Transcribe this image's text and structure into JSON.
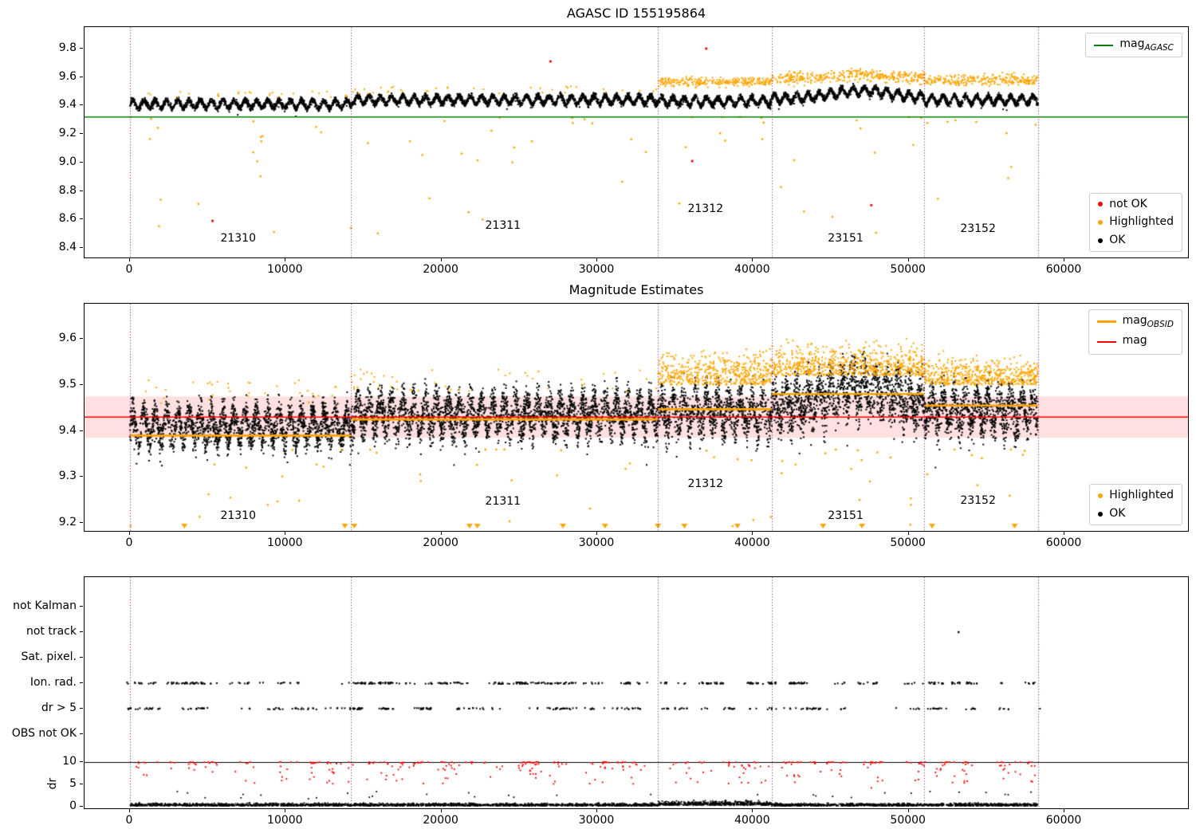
{
  "colors": {
    "ok": "#000000",
    "highlighted": "#FFA500",
    "not_ok": "#FF0000",
    "agasc": "#008000",
    "mag": "#FF0000",
    "mag_band": "rgba(255,0,0,0.12)",
    "vline": "#800080",
    "spine": "#000000"
  },
  "chart_data": [
    {
      "type": "scatter",
      "title": "AGASC ID 155195864",
      "xlim": [
        -2918,
        67932
      ],
      "ylim": [
        8.333,
        9.951
      ],
      "xticks": [
        0,
        10000,
        20000,
        30000,
        40000,
        50000,
        60000
      ],
      "yticks": [
        8.4,
        8.6,
        8.8,
        9.0,
        9.2,
        9.4,
        9.6,
        9.8
      ],
      "vlines": [
        0,
        14200,
        33900,
        41200,
        51000,
        58300
      ],
      "agasc_mag": 9.32,
      "x_range": [
        0,
        58300
      ],
      "legend_line": {
        "label_main": "mag",
        "label_sub": "AGASC"
      },
      "legend_points": [
        {
          "label": "not OK",
          "color_key": "not_ok"
        },
        {
          "label": "Highlighted",
          "color_key": "highlighted"
        },
        {
          "label": "OK",
          "color_key": "ok"
        }
      ],
      "obsid_labels": [
        {
          "id": "21310",
          "x": 7000,
          "y": 8.46
        },
        {
          "id": "21311",
          "x": 24000,
          "y": 8.55
        },
        {
          "id": "21312",
          "x": 37000,
          "y": 8.67
        },
        {
          "id": "23151",
          "x": 46000,
          "y": 8.46
        },
        {
          "id": "23152",
          "x": 54500,
          "y": 8.53
        }
      ],
      "segments": [
        {
          "x0": 0,
          "x1": 14200,
          "base": 9.41
        },
        {
          "x0": 14200,
          "x1": 33900,
          "base": 9.44
        },
        {
          "x0": 33900,
          "x1": 41200,
          "base": 9.43,
          "highlight_band": [
            9.5,
            9.63
          ]
        },
        {
          "x0": 41200,
          "x1": 51000,
          "base": 9.45,
          "highlight_band": [
            9.5,
            9.68
          ],
          "bump_x": 47000,
          "bump_w": 2600,
          "bump_h": 0.055
        },
        {
          "x0": 51000,
          "x1": 58300,
          "base": 9.44,
          "highlight_band": [
            9.5,
            9.66
          ]
        }
      ],
      "black_points": 7000,
      "outliers_orange": {
        "count": 70,
        "y_top": 9.32,
        "y_bottom": 8.45
      },
      "not_ok_points": [
        [
          5300,
          8.59
        ],
        [
          27000,
          9.71
        ],
        [
          36100,
          9.01
        ],
        [
          37000,
          9.8
        ],
        [
          47600,
          8.7
        ]
      ]
    },
    {
      "type": "scatter",
      "title": "Magnitude Estimates",
      "xlim": [
        -2918,
        67932
      ],
      "ylim": [
        9.183,
        9.676
      ],
      "xticks": [
        0,
        10000,
        20000,
        30000,
        40000,
        50000,
        60000
      ],
      "yticks": [
        9.2,
        9.3,
        9.4,
        9.5,
        9.6
      ],
      "vlines": [
        0,
        14200,
        33900,
        41200,
        51000,
        58300
      ],
      "mag": 9.43,
      "mag_band": [
        9.385,
        9.475
      ],
      "x_range": [
        0,
        58300
      ],
      "obsid_mags": [
        {
          "id": "21310",
          "x0": 0,
          "x1": 14200,
          "mag": 9.39
        },
        {
          "id": "21311",
          "x0": 14200,
          "x1": 33900,
          "mag": 9.425
        },
        {
          "id": "21312",
          "x0": 33900,
          "x1": 41200,
          "mag": 9.447
        },
        {
          "id": "23151",
          "x0": 41200,
          "x1": 51000,
          "mag": 9.48
        },
        {
          "id": "23152",
          "x0": 51000,
          "x1": 58300,
          "mag": 9.455
        }
      ],
      "legend_lines": [
        {
          "label_main": "mag",
          "label_sub": "OBSID",
          "color_key": "highlighted"
        },
        {
          "label_main": "mag",
          "label_sub": "",
          "color_key": "mag"
        }
      ],
      "legend_points": [
        {
          "label": "Highlighted",
          "color_key": "highlighted"
        },
        {
          "label": "OK",
          "color_key": "ok"
        }
      ],
      "obsid_labels": [
        {
          "id": "21310",
          "x": 7000,
          "y": 9.215
        },
        {
          "id": "21311",
          "x": 24000,
          "y": 9.245
        },
        {
          "id": "21312",
          "x": 37000,
          "y": 9.283
        },
        {
          "id": "23151",
          "x": 46000,
          "y": 9.215
        },
        {
          "id": "23152",
          "x": 54500,
          "y": 9.247
        }
      ],
      "segments": [
        {
          "x0": 0,
          "x1": 14200,
          "base": 9.41,
          "spread": 0.035
        },
        {
          "x0": 14200,
          "x1": 33900,
          "base": 9.435,
          "spread": 0.04
        },
        {
          "x0": 33900,
          "x1": 41200,
          "base": 9.44,
          "spread": 0.045,
          "highlight_band": [
            9.5,
            9.67
          ]
        },
        {
          "x0": 41200,
          "x1": 51000,
          "base": 9.455,
          "spread": 0.055,
          "highlight_band": [
            9.52,
            9.68
          ],
          "bump_x": 47000,
          "bump_w": 2600,
          "bump_h": 0.04
        },
        {
          "x0": 51000,
          "x1": 58300,
          "base": 9.445,
          "spread": 0.045,
          "highlight_band": [
            9.5,
            9.64
          ]
        }
      ],
      "black_points": 9000,
      "outliers_orange": {
        "count": 60,
        "y_top": 9.36,
        "y_bottom": 9.19
      },
      "clipped_markers_x": [
        3500,
        13800,
        14400,
        21800,
        22300,
        27800,
        30500,
        33900,
        35600,
        39000,
        44500,
        47000,
        51500,
        56800
      ]
    },
    {
      "type": "scatter",
      "categories": [
        "not Kalman",
        "not track",
        "Sat. pixel.",
        "Ion. rad.",
        "dr > 5",
        "OBS not OK"
      ],
      "xlim": [
        -2918,
        67932
      ],
      "xticks": [
        0,
        10000,
        20000,
        30000,
        40000,
        50000,
        60000
      ],
      "vlines": [
        0,
        14200,
        33900,
        41200,
        51000,
        58300
      ],
      "x_range": [
        0,
        58300
      ],
      "dr_axis_label": "dr",
      "dr_ticks": [
        0,
        5,
        10
      ],
      "dr_line": 10,
      "ion_rad_clusters": 110,
      "dr5_clusters": 80,
      "not_track_points": [
        [
          53200
        ]
      ],
      "red_dr_clusters": 120,
      "red_low_points": [
        [
          5300,
          7.8
        ],
        [
          30500,
          8.6
        ],
        [
          36000,
          6.3
        ],
        [
          47600,
          4.2
        ]
      ],
      "black_dr_count": 3500
    }
  ]
}
